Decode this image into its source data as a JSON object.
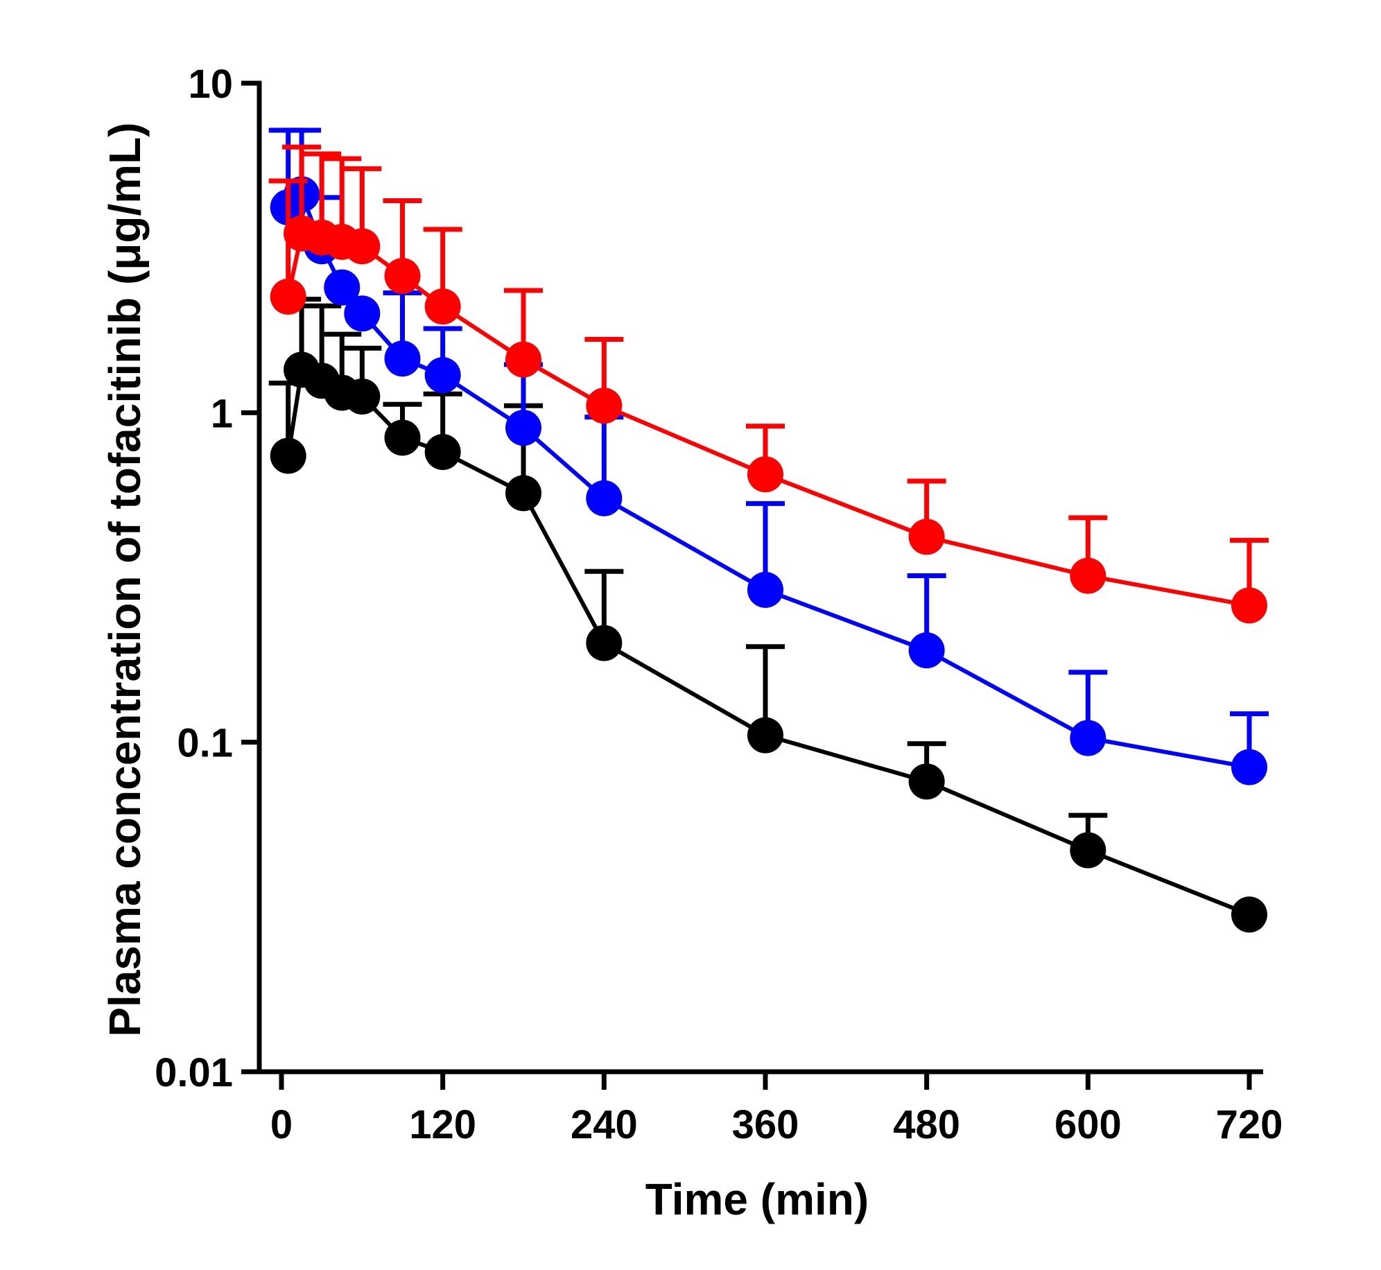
{
  "chart_data": {
    "type": "line",
    "title": "",
    "xlabel": "Time (min)",
    "ylabel": "Plasma concentration of tofacitinib (μg/mL)",
    "xlim": [
      -15,
      735
    ],
    "ylim": [
      0.01,
      10
    ],
    "yscale": "log",
    "x_ticks": [
      0,
      120,
      240,
      360,
      480,
      600,
      720
    ],
    "x_tick_labels": [
      "0",
      "120",
      "240",
      "360",
      "480",
      "600",
      "720"
    ],
    "y_ticks": [
      0.01,
      0.1,
      1,
      10
    ],
    "y_tick_labels": [
      "0.01",
      "0.1",
      "1",
      "10"
    ],
    "grid": false,
    "legend": "none",
    "series": [
      {
        "name": "black series",
        "color": "#000000",
        "x": [
          5,
          15,
          30,
          45,
          60,
          90,
          120,
          180,
          240,
          360,
          480,
          600,
          720
        ],
        "values": [
          0.74,
          1.35,
          1.25,
          1.15,
          1.12,
          0.84,
          0.76,
          0.57,
          0.2,
          0.105,
          0.076,
          0.047,
          0.03
        ],
        "errors": [
          0.49,
          0.86,
          0.86,
          0.58,
          0.45,
          0.22,
          0.38,
          0.48,
          0.13,
          0.09,
          0.023,
          0.013,
          0
        ]
      },
      {
        "name": "blue series",
        "color": "#0000ff",
        "x": [
          5,
          15,
          30,
          45,
          60,
          90,
          120,
          180,
          240,
          360,
          480,
          600,
          720
        ],
        "values": [
          4.2,
          4.6,
          3.2,
          2.4,
          2.0,
          1.46,
          1.3,
          0.9,
          0.55,
          0.29,
          0.19,
          0.103,
          0.084
        ],
        "errors": [
          3.0,
          2.6,
          1.3,
          0,
          0,
          0.85,
          0.5,
          0.5,
          0.42,
          0.24,
          0.13,
          0.06,
          0.038
        ]
      },
      {
        "name": "red series",
        "color": "#ff0000",
        "x": [
          5,
          15,
          30,
          45,
          60,
          90,
          120,
          180,
          240,
          360,
          480,
          600,
          720
        ],
        "values": [
          2.25,
          3.5,
          3.4,
          3.3,
          3.2,
          2.6,
          2.1,
          1.45,
          1.05,
          0.65,
          0.42,
          0.32,
          0.26
        ],
        "errors": [
          2.8,
          2.9,
          2.7,
          2.6,
          2.3,
          1.8,
          1.5,
          0.9,
          0.62,
          0.26,
          0.2,
          0.16,
          0.15
        ]
      }
    ]
  }
}
